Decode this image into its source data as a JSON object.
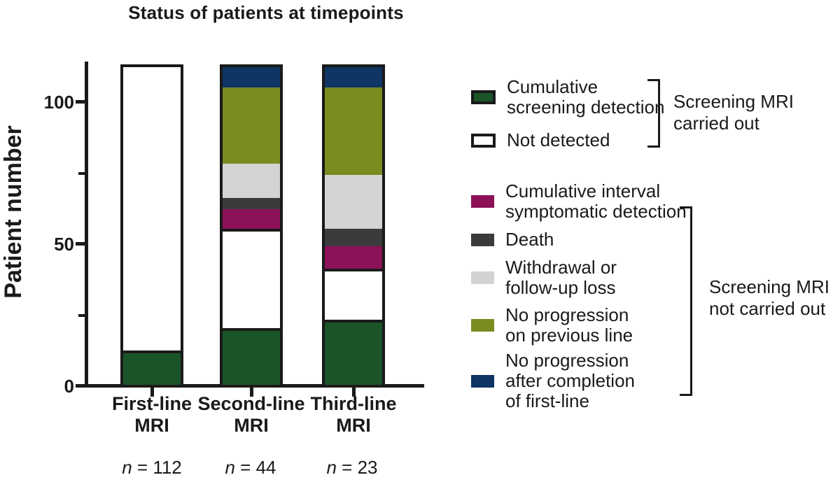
{
  "chart_data": {
    "type": "bar",
    "stacked": true,
    "title": "Status of patients at timepoints",
    "ylabel": "Patient number",
    "ylim": [
      0,
      115
    ],
    "yticks_major": [
      0,
      50,
      100
    ],
    "yticks_minor": [
      25,
      75
    ],
    "ytick_labels": [
      "0",
      "50",
      "100"
    ],
    "grid": false,
    "categories": [
      "First-line MRI",
      "Second-line MRI",
      "Third-line MRI"
    ],
    "categories_display": [
      "First-line\nMRI",
      "Second-line\nMRI",
      "Third-line\nMRI"
    ],
    "n_labels": [
      {
        "symbol": "n",
        "rest": " = 112"
      },
      {
        "symbol": "n",
        "rest": " = 44"
      },
      {
        "symbol": "n",
        "rest": " = 23"
      }
    ],
    "totals": [
      112,
      112,
      112
    ],
    "series": [
      {
        "name": "Cumulative screening detection",
        "color_key": "green",
        "values": [
          11,
          19,
          22
        ]
      },
      {
        "name": "Not detected",
        "color_key": "white",
        "values": [
          101,
          36,
          19
        ]
      },
      {
        "name": "Cumulative interval symptomatic detection",
        "color_key": "magenta",
        "values": [
          0,
          7,
          8
        ]
      },
      {
        "name": "Death",
        "color_key": "dark_gray",
        "values": [
          0,
          4,
          6
        ]
      },
      {
        "name": "Withdrawal or follow-up loss",
        "color_key": "light_gray",
        "values": [
          0,
          12,
          19
        ]
      },
      {
        "name": "No progression on previous line",
        "color_key": "olive",
        "values": [
          0,
          27,
          31
        ]
      },
      {
        "name": "No progression after completion of first-line",
        "color_key": "navy",
        "values": [
          0,
          7,
          7
        ]
      }
    ],
    "colors": {
      "green": "#1A5429",
      "white": "#FFFFFF",
      "magenta": "#8C1157",
      "dark_gray": "#3B3B3D",
      "light_gray": "#D3D3D5",
      "olive": "#7A8B20",
      "navy": "#0E3563",
      "line": "#1A1A1A"
    },
    "legend_position": "right"
  },
  "legend": {
    "group1": {
      "items": [
        {
          "label": "Cumulative\nscreening detection",
          "color_key": "green"
        },
        {
          "label": "Not detected",
          "color_key": "white"
        }
      ],
      "bracket_label": "Screening MRI\ncarried out"
    },
    "group2": {
      "items": [
        {
          "label": "Cumulative interval\nsymptomatic detection",
          "color_key": "magenta"
        },
        {
          "label": "Death",
          "color_key": "dark_gray"
        },
        {
          "label": "Withdrawal or\nfollow-up loss",
          "color_key": "light_gray"
        },
        {
          "label": "No progression\non previous line",
          "color_key": "olive"
        },
        {
          "label": "No progression\nafter completion\nof first-line",
          "color_key": "navy"
        }
      ],
      "bracket_label": "Screening MRI\nnot carried out"
    }
  }
}
